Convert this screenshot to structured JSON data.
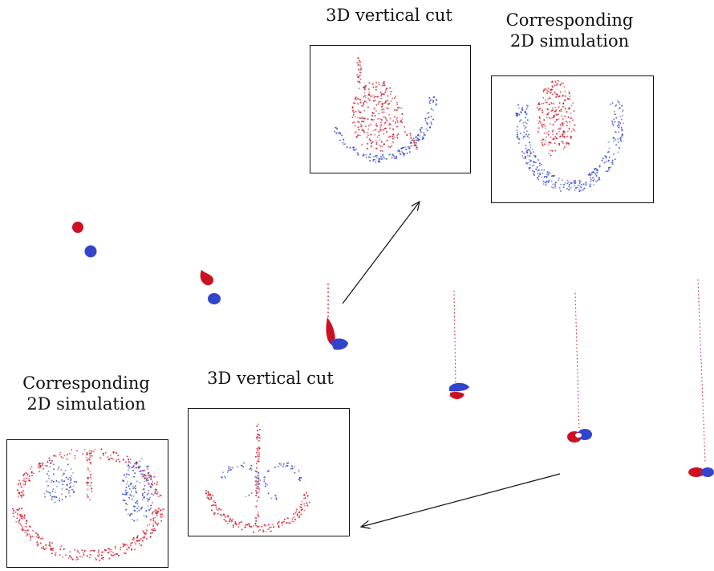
{
  "labels": {
    "top_cut": "3D vertical cut",
    "top_sim_line1": "Corresponding",
    "top_sim_line2": "2D simulation",
    "bottom_cut": "3D vertical cut",
    "bottom_sim_line1": "Corresponding",
    "bottom_sim_line2": "2D simulation"
  },
  "colors": {
    "red_fluid": "#cc1122",
    "blue_fluid": "#3344cc",
    "frame": "#111111",
    "arrow": "#111111"
  }
}
